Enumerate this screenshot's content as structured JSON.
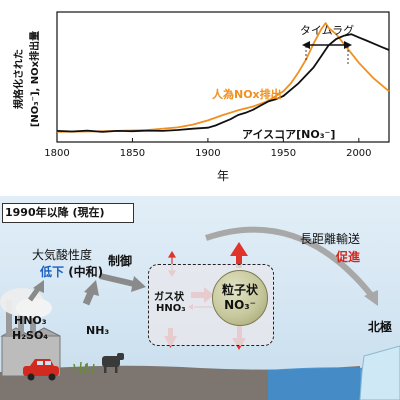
{
  "chart_data": {
    "type": "line",
    "ylabel_line1": "規格化された",
    "ylabel_line2": "[NO₃⁻], NOx排出量",
    "xlabel": "年",
    "xlim": [
      1800,
      2020
    ],
    "ylim": [
      -0.3,
      3.8
    ],
    "xticks": [
      "1800",
      "1850",
      "1900",
      "1950",
      "2000"
    ],
    "series": [
      {
        "name": "人為NOx排出",
        "color": "#f0901e",
        "x": [
          1800,
          1820,
          1840,
          1860,
          1880,
          1890,
          1900,
          1910,
          1920,
          1930,
          1940,
          1950,
          1955,
          1960,
          1965,
          1970,
          1975,
          1978,
          1980,
          1985,
          1990,
          1995,
          2000,
          2005,
          2010,
          2015,
          2020
        ],
        "y": [
          0.02,
          0.03,
          0.05,
          0.08,
          0.16,
          0.25,
          0.38,
          0.55,
          0.7,
          0.82,
          1.0,
          1.3,
          1.55,
          1.9,
          2.3,
          2.8,
          3.25,
          3.45,
          3.3,
          3.1,
          2.8,
          2.5,
          2.2,
          1.95,
          1.7,
          1.5,
          1.3
        ]
      },
      {
        "name": "アイスコア[NO₃⁻]",
        "color": "#111111",
        "x": [
          1800,
          1810,
          1820,
          1830,
          1840,
          1850,
          1860,
          1870,
          1880,
          1890,
          1900,
          1905,
          1910,
          1915,
          1920,
          1925,
          1930,
          1935,
          1940,
          1945,
          1950,
          1955,
          1960,
          1965,
          1970,
          1975,
          1980,
          1985,
          1990,
          1995,
          2000,
          2005,
          2010,
          2015,
          2020
        ],
        "y": [
          0.05,
          0.03,
          0.06,
          0.02,
          0.05,
          0.04,
          0.06,
          0.05,
          0.08,
          0.12,
          0.15,
          0.22,
          0.32,
          0.42,
          0.55,
          0.62,
          0.72,
          0.85,
          0.98,
          1.05,
          1.15,
          1.35,
          1.55,
          1.8,
          2.05,
          2.4,
          2.75,
          2.95,
          3.05,
          3.1,
          3.0,
          2.9,
          2.8,
          2.7,
          2.6
        ]
      }
    ],
    "annotations": {
      "timelag": "タイムラグ",
      "orange_label": "人為NOx排出",
      "black_label": "アイスコア[NO₃⁻]"
    }
  },
  "diagram": {
    "section_title": "1990年以降 (現在)",
    "acidity_line1": "大気酸性度",
    "acidity_down": "低下",
    "acidity_cause": " (中和)",
    "control": "制御",
    "hno3": "HNO₃",
    "h2so4": "H₂SO₄",
    "nh3": "NH₃",
    "gas_line1": "ガス状",
    "gas_line2": "HNO₃",
    "particle_line1": "粒子状",
    "particle_line2": "NO₃⁻",
    "transport_line1": "長距離輸送",
    "transport_line2": "促進",
    "destination": "北極"
  }
}
